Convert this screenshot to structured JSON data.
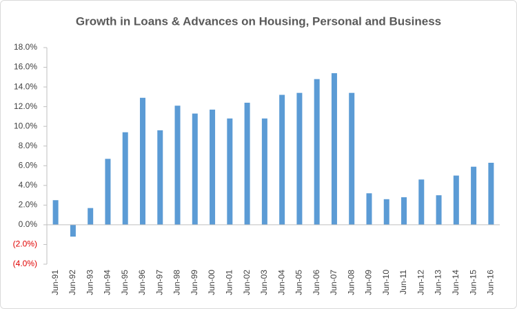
{
  "chart_data": {
    "type": "bar",
    "title": "Growth in Loans & Advances on Housing, Personal and Business",
    "categories": [
      "Jun-91",
      "Jun-92",
      "Jun-93",
      "Jun-94",
      "Jun-95",
      "Jun-96",
      "Jun-97",
      "Jun-98",
      "Jun-99",
      "Jun-00",
      "Jun-01",
      "Jun-02",
      "Jun-03",
      "Jun-04",
      "Jun-05",
      "Jun-06",
      "Jun-07",
      "Jun-08",
      "Jun-09",
      "Jun-10",
      "Jun-11",
      "Jun-12",
      "Jun-13",
      "Jun-14",
      "Jun-15",
      "Jun-16"
    ],
    "values": [
      2.5,
      -1.2,
      1.7,
      6.7,
      9.4,
      12.9,
      9.6,
      12.1,
      11.3,
      11.7,
      10.8,
      12.4,
      10.8,
      13.2,
      13.4,
      14.8,
      15.4,
      13.4,
      3.2,
      2.6,
      2.8,
      4.6,
      3.0,
      5.0,
      5.9,
      6.3
    ],
    "color": "#5b9bd5",
    "negative_tick_color": "#e00000",
    "ylim": [
      -4,
      18
    ],
    "yticks": [
      {
        "value": -4,
        "label": "(4.0%)"
      },
      {
        "value": -2,
        "label": "(2.0%)"
      },
      {
        "value": 0,
        "label": "0.0%"
      },
      {
        "value": 2,
        "label": "2.0%"
      },
      {
        "value": 4,
        "label": "4.0%"
      },
      {
        "value": 6,
        "label": "6.0%"
      },
      {
        "value": 8,
        "label": "8.0%"
      },
      {
        "value": 10,
        "label": "10.0%"
      },
      {
        "value": 12,
        "label": "12.0%"
      },
      {
        "value": 14,
        "label": "14.0%"
      },
      {
        "value": 16,
        "label": "16.0%"
      },
      {
        "value": 18,
        "label": "18.0%"
      }
    ],
    "grid": false
  }
}
